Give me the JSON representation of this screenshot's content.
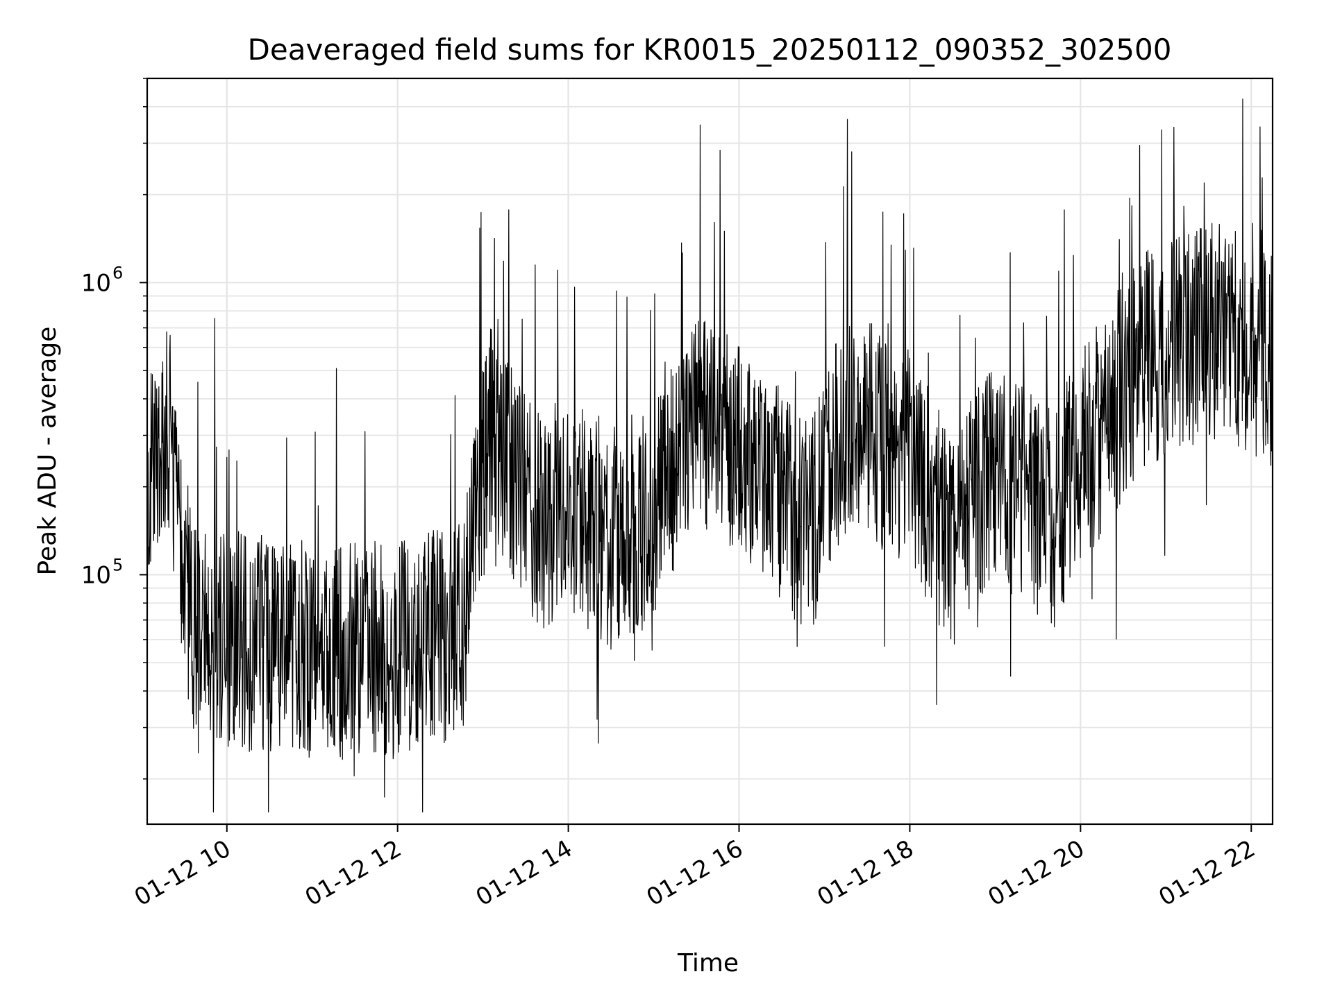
{
  "chart_data": {
    "type": "line",
    "title": "Deaveraged field sums for KR0015_20250112_090352_302500",
    "xlabel": "Time",
    "ylabel": "Peak ADU - average",
    "x_start": "01-12 09:04",
    "x_end": "01-12 22:15",
    "x_ticks": [
      "01-12 10",
      "01-12 12",
      "01-12 14",
      "01-12 16",
      "01-12 18",
      "01-12 20",
      "01-12 22"
    ],
    "y_scale": "log",
    "ylim": [
      14000,
      5000000
    ],
    "y_ticks": [
      {
        "base": "10",
        "exp": "5",
        "value": 100000
      },
      {
        "base": "10",
        "exp": "6",
        "value": 1000000
      }
    ],
    "grid": true,
    "line_color": "#000000",
    "grid_color": "#e5e5e5",
    "series": [
      {
        "values_description_free": true,
        "envelope": [
          {
            "t": "01-12 09:04",
            "median": 250000
          },
          {
            "t": "01-12 09:20",
            "median": 300000
          },
          {
            "t": "01-12 09:35",
            "median": 70000
          },
          {
            "t": "01-12 10:00",
            "median": 60000
          },
          {
            "t": "01-12 11:00",
            "median": 55000
          },
          {
            "t": "01-12 12:00",
            "median": 55000
          },
          {
            "t": "01-12 12:45",
            "median": 65000
          },
          {
            "t": "01-12 13:05",
            "median": 320000
          },
          {
            "t": "01-12 13:40",
            "median": 150000
          },
          {
            "t": "01-12 14:00",
            "median": 180000
          },
          {
            "t": "01-12 14:45",
            "median": 110000
          },
          {
            "t": "01-12 15:30",
            "median": 350000
          },
          {
            "t": "01-12 16:15",
            "median": 220000
          },
          {
            "t": "01-12 16:50",
            "median": 140000
          },
          {
            "t": "01-12 17:15",
            "median": 350000
          },
          {
            "t": "01-12 18:00",
            "median": 250000
          },
          {
            "t": "01-12 18:30",
            "median": 130000
          },
          {
            "t": "01-12 19:00",
            "median": 230000
          },
          {
            "t": "01-12 19:40",
            "median": 150000
          },
          {
            "t": "01-12 20:00",
            "median": 250000
          },
          {
            "t": "01-12 20:45",
            "median": 550000
          },
          {
            "t": "01-12 21:30",
            "median": 700000
          },
          {
            "t": "01-12 22:15",
            "median": 550000
          }
        ]
      }
    ]
  }
}
